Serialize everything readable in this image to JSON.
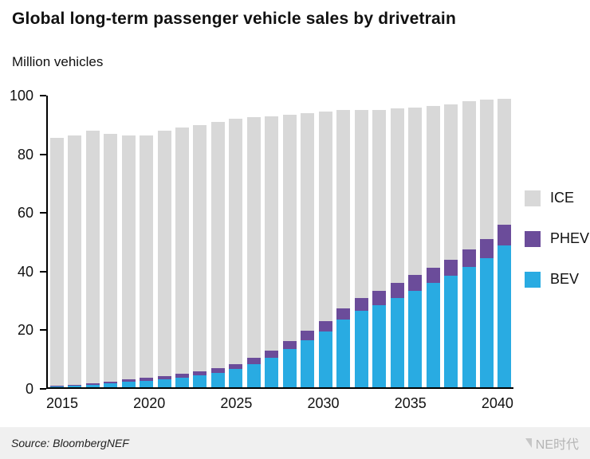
{
  "footer": {
    "source": "Source: BloombergNEF",
    "watermark": "NE时代"
  },
  "chart_data": {
    "type": "bar",
    "stacked": true,
    "title": "Global long-term passenger vehicle sales by drivetrain",
    "ylabel": "Million vehicles",
    "xlabel": "",
    "ylim": [
      0,
      100
    ],
    "yticks": [
      0,
      20,
      40,
      60,
      80,
      100
    ],
    "grid": false,
    "legend_position": "right",
    "categories": [
      2015,
      2016,
      2017,
      2018,
      2019,
      2020,
      2021,
      2022,
      2023,
      2024,
      2025,
      2026,
      2027,
      2028,
      2029,
      2030,
      2031,
      2032,
      2033,
      2034,
      2035,
      2036,
      2037,
      2038,
      2039,
      2040
    ],
    "xtick_labels": [
      "2015",
      "2020",
      "2025",
      "2030",
      "2035",
      "2040"
    ],
    "series": [
      {
        "name": "BEV",
        "color": "#29abe2",
        "values": [
          0.3,
          0.5,
          0.8,
          1.3,
          1.8,
          2.2,
          2.8,
          3.3,
          4.0,
          5.0,
          6.2,
          8.0,
          10.0,
          13.0,
          16.0,
          19.0,
          23.0,
          26.0,
          28.0,
          30.5,
          33.0,
          35.5,
          38.0,
          41.0,
          44.0,
          48.5
        ]
      },
      {
        "name": "PHEV",
        "color": "#6b4c9a",
        "values": [
          0.2,
          0.3,
          0.5,
          0.7,
          0.8,
          1.0,
          1.1,
          1.2,
          1.4,
          1.6,
          1.8,
          2.1,
          2.4,
          2.8,
          3.2,
          3.6,
          4.0,
          4.4,
          4.8,
          5.0,
          5.2,
          5.4,
          5.6,
          6.0,
          6.5,
          7.0
        ]
      },
      {
        "name": "ICE",
        "color": "#d8d8d8",
        "values": [
          84.5,
          85.2,
          86.2,
          84.5,
          83.4,
          82.8,
          83.6,
          84.0,
          84.1,
          83.9,
          83.5,
          81.9,
          80.1,
          77.2,
          74.3,
          71.4,
          67.5,
          64.1,
          61.7,
          59.5,
          57.3,
          55.1,
          53.0,
          50.5,
          47.5,
          43.0
        ]
      }
    ]
  }
}
